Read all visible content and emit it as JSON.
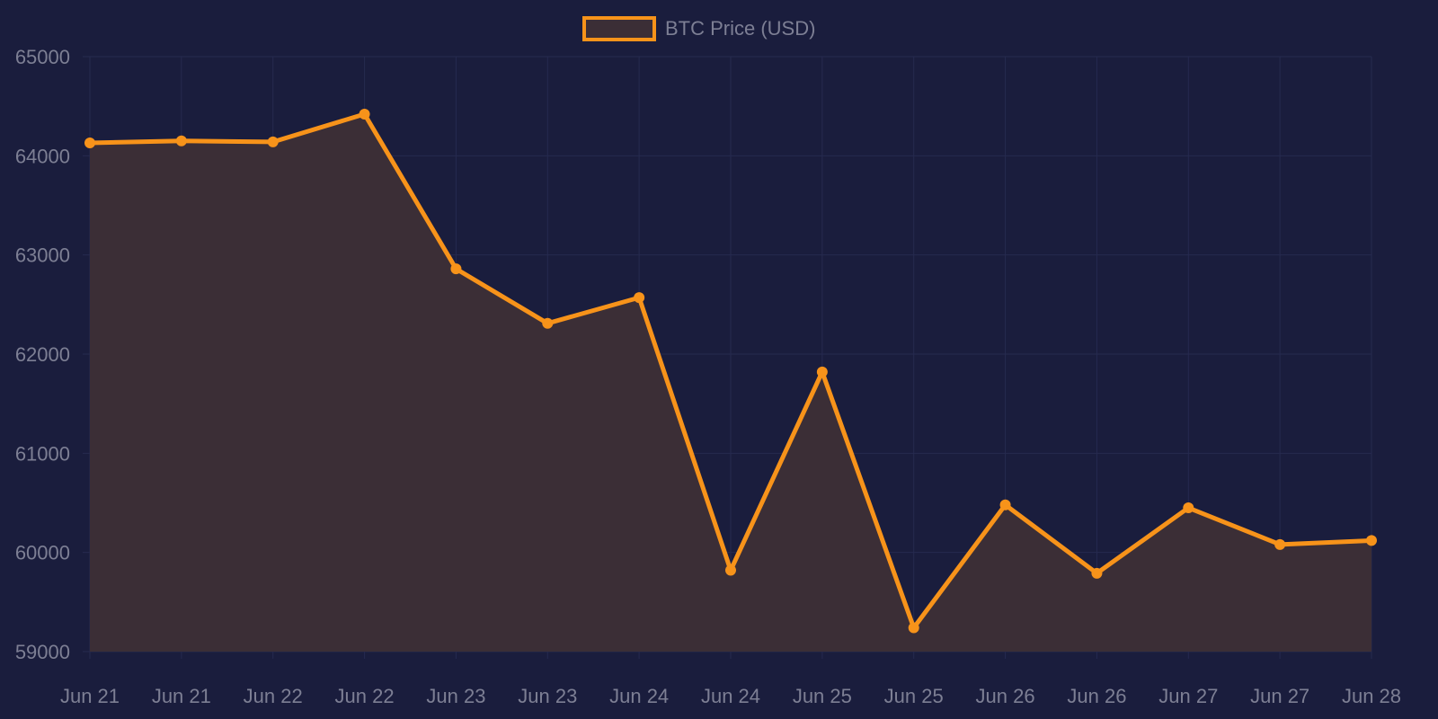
{
  "colors": {
    "background": "#1a1d3d",
    "line": "#f7931a",
    "fill": "#3b2e36",
    "grid": "#262a4f",
    "text": "#7d7f94"
  },
  "chart_data": {
    "type": "area",
    "x": [
      "Jun 21",
      "Jun 21",
      "Jun 22",
      "Jun 22",
      "Jun 23",
      "Jun 23",
      "Jun 24",
      "Jun 24",
      "Jun 25",
      "Jun 25",
      "Jun 26",
      "Jun 26",
      "Jun 27",
      "Jun 27",
      "Jun 28"
    ],
    "series": [
      {
        "name": "BTC Price (USD)",
        "values": [
          64130,
          64150,
          64140,
          64420,
          62860,
          62310,
          62570,
          59820,
          61820,
          59240,
          60480,
          59790,
          60450,
          60080,
          60120
        ]
      }
    ],
    "yticks": [
      "65000",
      "64000",
      "63000",
      "62000",
      "61000",
      "60000",
      "59000"
    ],
    "ylim": [
      59000,
      65000
    ],
    "grid": true,
    "legend": "top-center"
  }
}
